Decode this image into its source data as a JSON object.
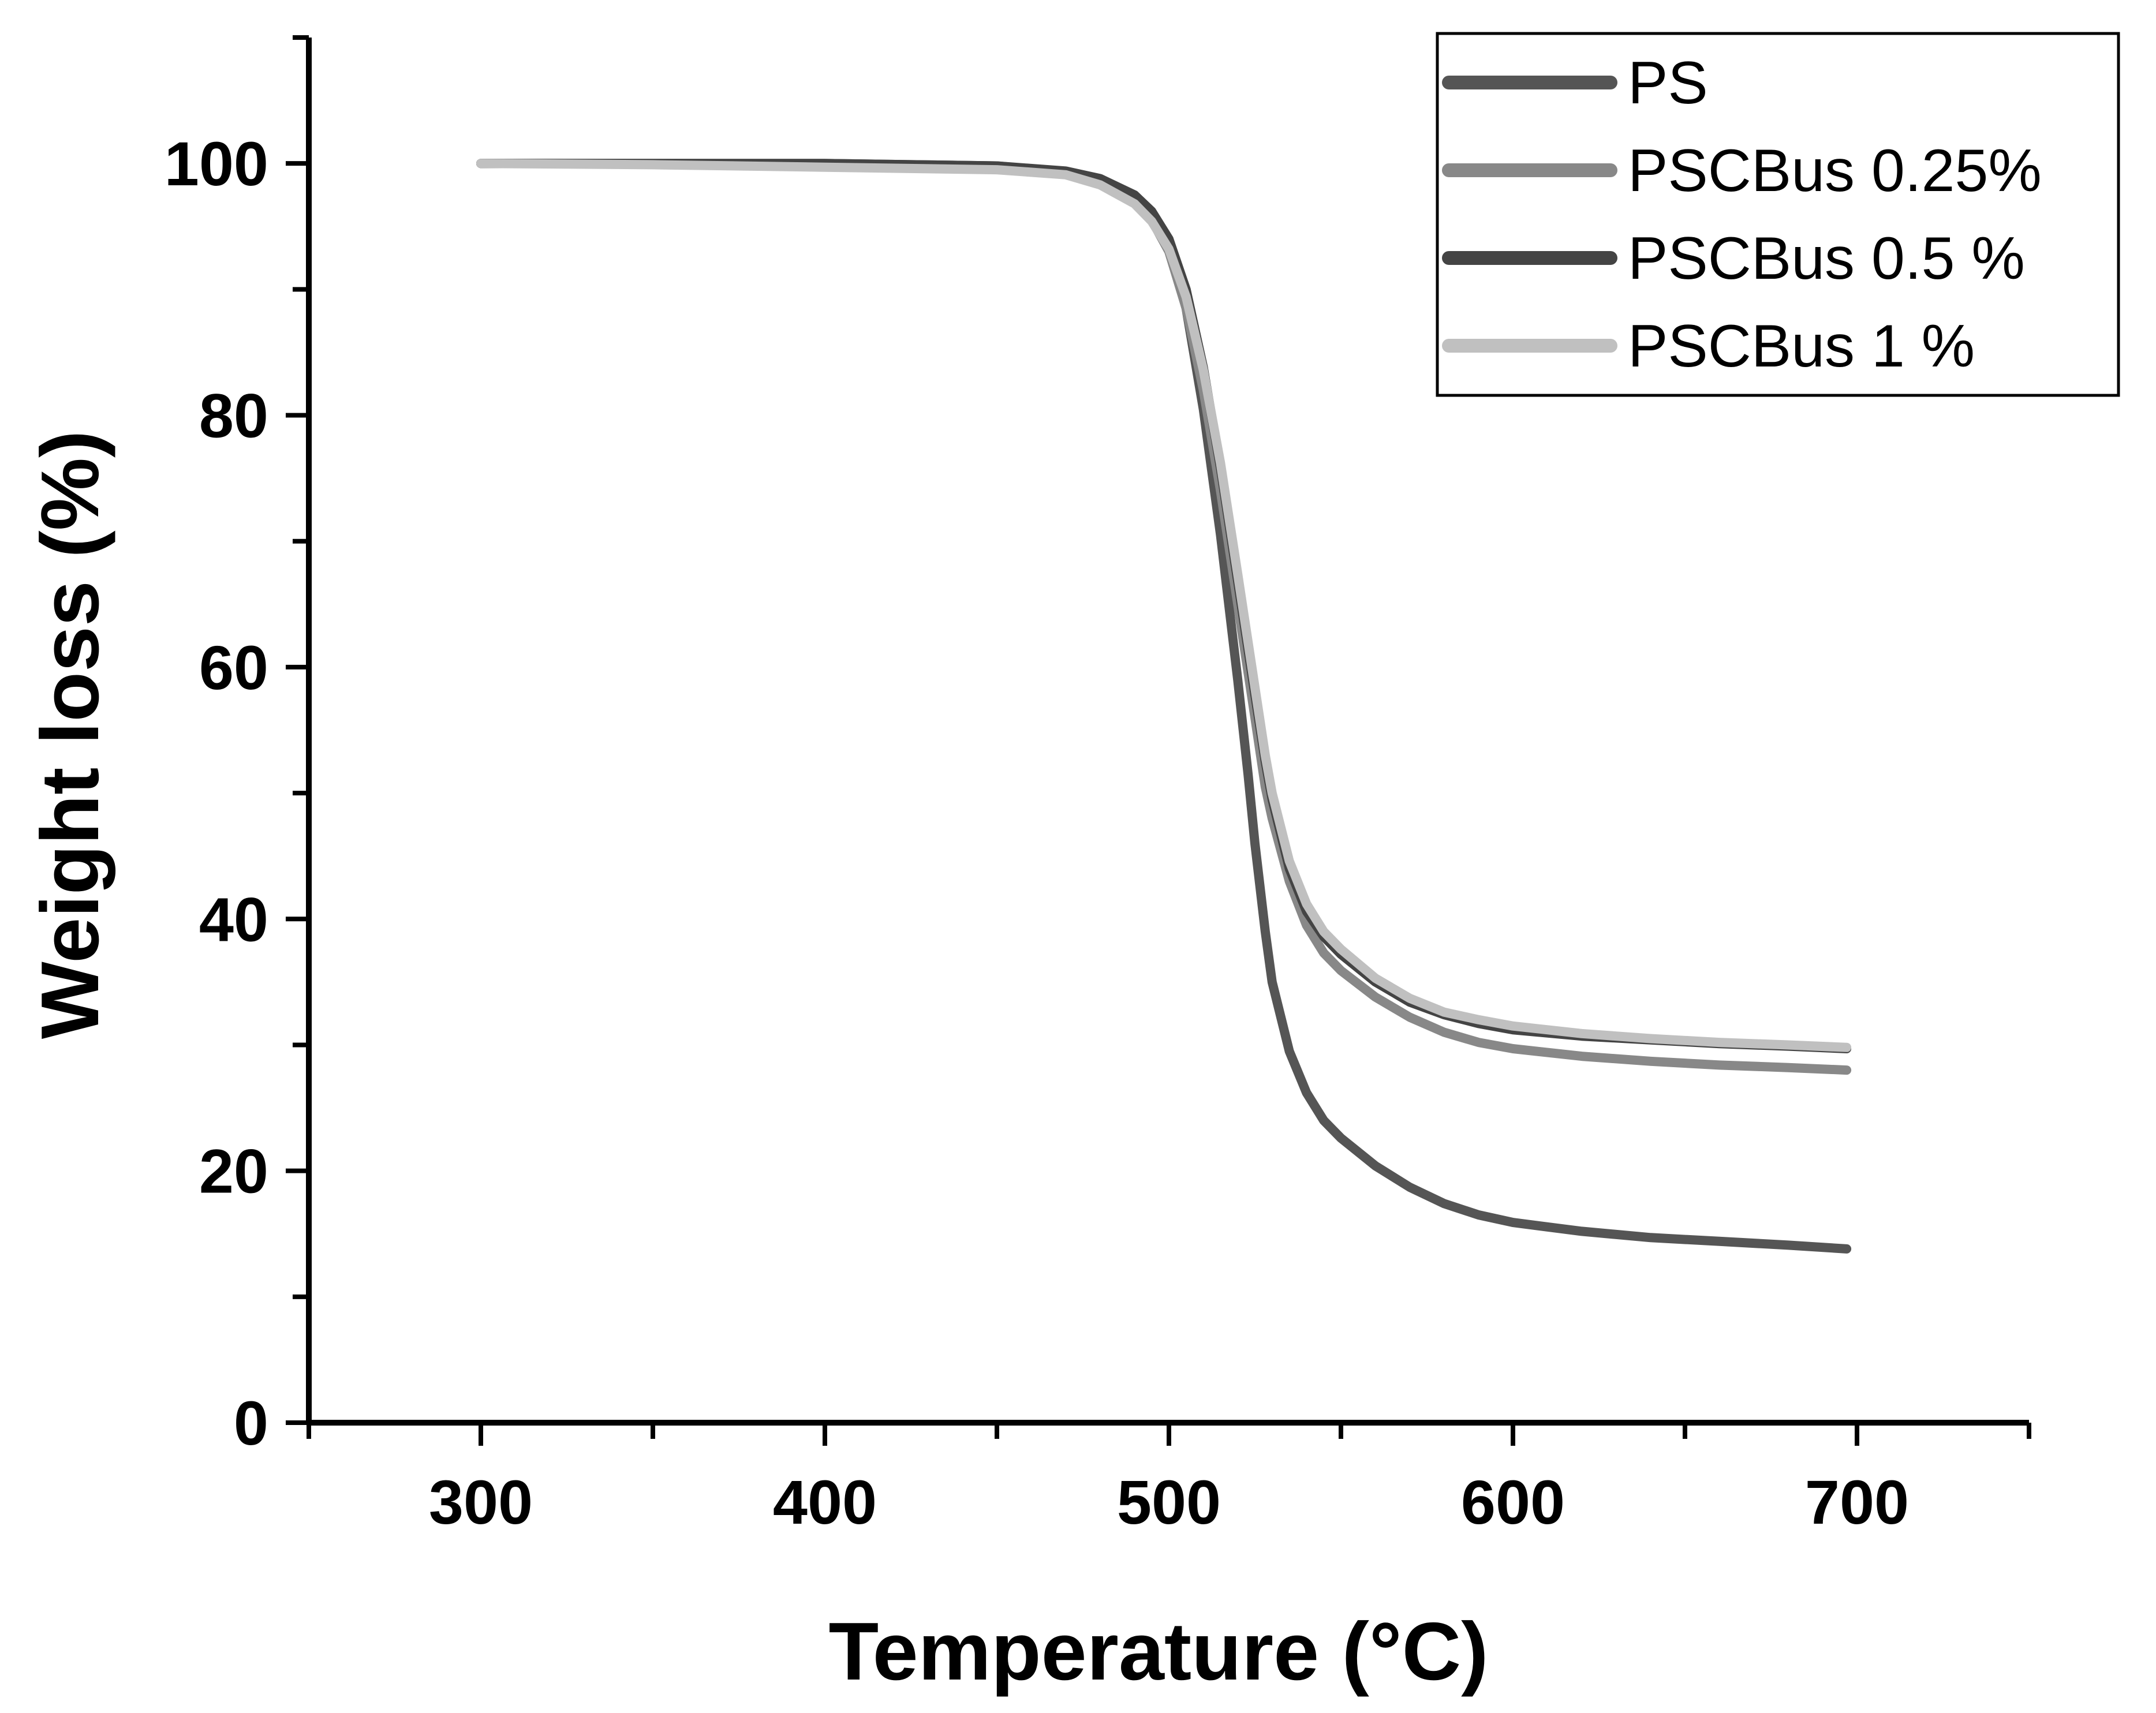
{
  "chart_data": {
    "type": "line",
    "title": "",
    "xlabel": "Temperature (°C)",
    "ylabel": "Weight loss (%)",
    "xlim": [
      250,
      750
    ],
    "ylim": [
      0,
      110
    ],
    "xticks": [
      300,
      400,
      500,
      600,
      700
    ],
    "yticks": [
      0,
      20,
      40,
      60,
      80,
      100
    ],
    "grid": false,
    "legend_position": "top-right",
    "series": [
      {
        "name": "PS",
        "color": "#555555",
        "x": [
          300,
          350,
          400,
          450,
          470,
          480,
          490,
          495,
          500,
          505,
          510,
          515,
          520,
          523,
          525,
          528,
          530,
          535,
          540,
          545,
          550,
          560,
          570,
          580,
          590,
          600,
          620,
          640,
          660,
          680,
          697
        ],
        "y": [
          100,
          100,
          100,
          99.8,
          99.3,
          98.6,
          97.2,
          95.8,
          93.5,
          88.5,
          80.5,
          70.5,
          59.0,
          51.5,
          46.0,
          39.0,
          35.0,
          29.5,
          26.2,
          24.0,
          22.6,
          20.4,
          18.7,
          17.4,
          16.5,
          15.9,
          15.2,
          14.7,
          14.4,
          14.1,
          13.8
        ]
      },
      {
        "name": "PSCBus 0.25%",
        "color": "#888888",
        "x": [
          300,
          350,
          400,
          450,
          470,
          480,
          490,
          495,
          500,
          505,
          510,
          515,
          520,
          525,
          528,
          530,
          535,
          540,
          545,
          550,
          560,
          570,
          580,
          590,
          600,
          620,
          640,
          660,
          680,
          697
        ],
        "y": [
          100,
          100,
          99.9,
          99.7,
          99.2,
          98.5,
          97.0,
          95.5,
          93.0,
          88.5,
          82.0,
          74.0,
          65.0,
          56.0,
          50.5,
          48.0,
          43.0,
          39.5,
          37.3,
          35.9,
          33.8,
          32.2,
          31.0,
          30.2,
          29.7,
          29.1,
          28.7,
          28.4,
          28.2,
          28.0
        ]
      },
      {
        "name": "PSCBus 0.5 %",
        "color": "#444444",
        "x": [
          300,
          350,
          400,
          450,
          470,
          480,
          490,
          495,
          500,
          505,
          510,
          515,
          520,
          525,
          528,
          530,
          535,
          540,
          545,
          550,
          560,
          570,
          580,
          590,
          600,
          620,
          640,
          660,
          680,
          697
        ],
        "y": [
          100,
          100,
          100,
          99.8,
          99.4,
          98.8,
          97.5,
          96.2,
          94.0,
          90.0,
          83.8,
          75.8,
          66.8,
          57.8,
          52.5,
          49.5,
          44.0,
          40.6,
          38.6,
          37.2,
          35.0,
          33.4,
          32.4,
          31.7,
          31.2,
          30.7,
          30.4,
          30.1,
          29.9,
          29.7
        ]
      },
      {
        "name": "PSCBus 1 %",
        "color": "#c0c0c0",
        "x": [
          300,
          350,
          400,
          450,
          470,
          480,
          490,
          495,
          500,
          505,
          510,
          515,
          520,
          525,
          528,
          530,
          535,
          540,
          545,
          550,
          560,
          570,
          580,
          590,
          600,
          620,
          640,
          660,
          680,
          697
        ],
        "y": [
          100,
          99.9,
          99.7,
          99.5,
          99.1,
          98.3,
          96.8,
          95.4,
          93.2,
          89.4,
          83.6,
          76.2,
          67.4,
          58.4,
          53.0,
          50.0,
          44.6,
          41.2,
          39.0,
          37.6,
          35.3,
          33.7,
          32.6,
          32.0,
          31.5,
          30.9,
          30.5,
          30.2,
          30.0,
          29.8
        ]
      }
    ]
  }
}
